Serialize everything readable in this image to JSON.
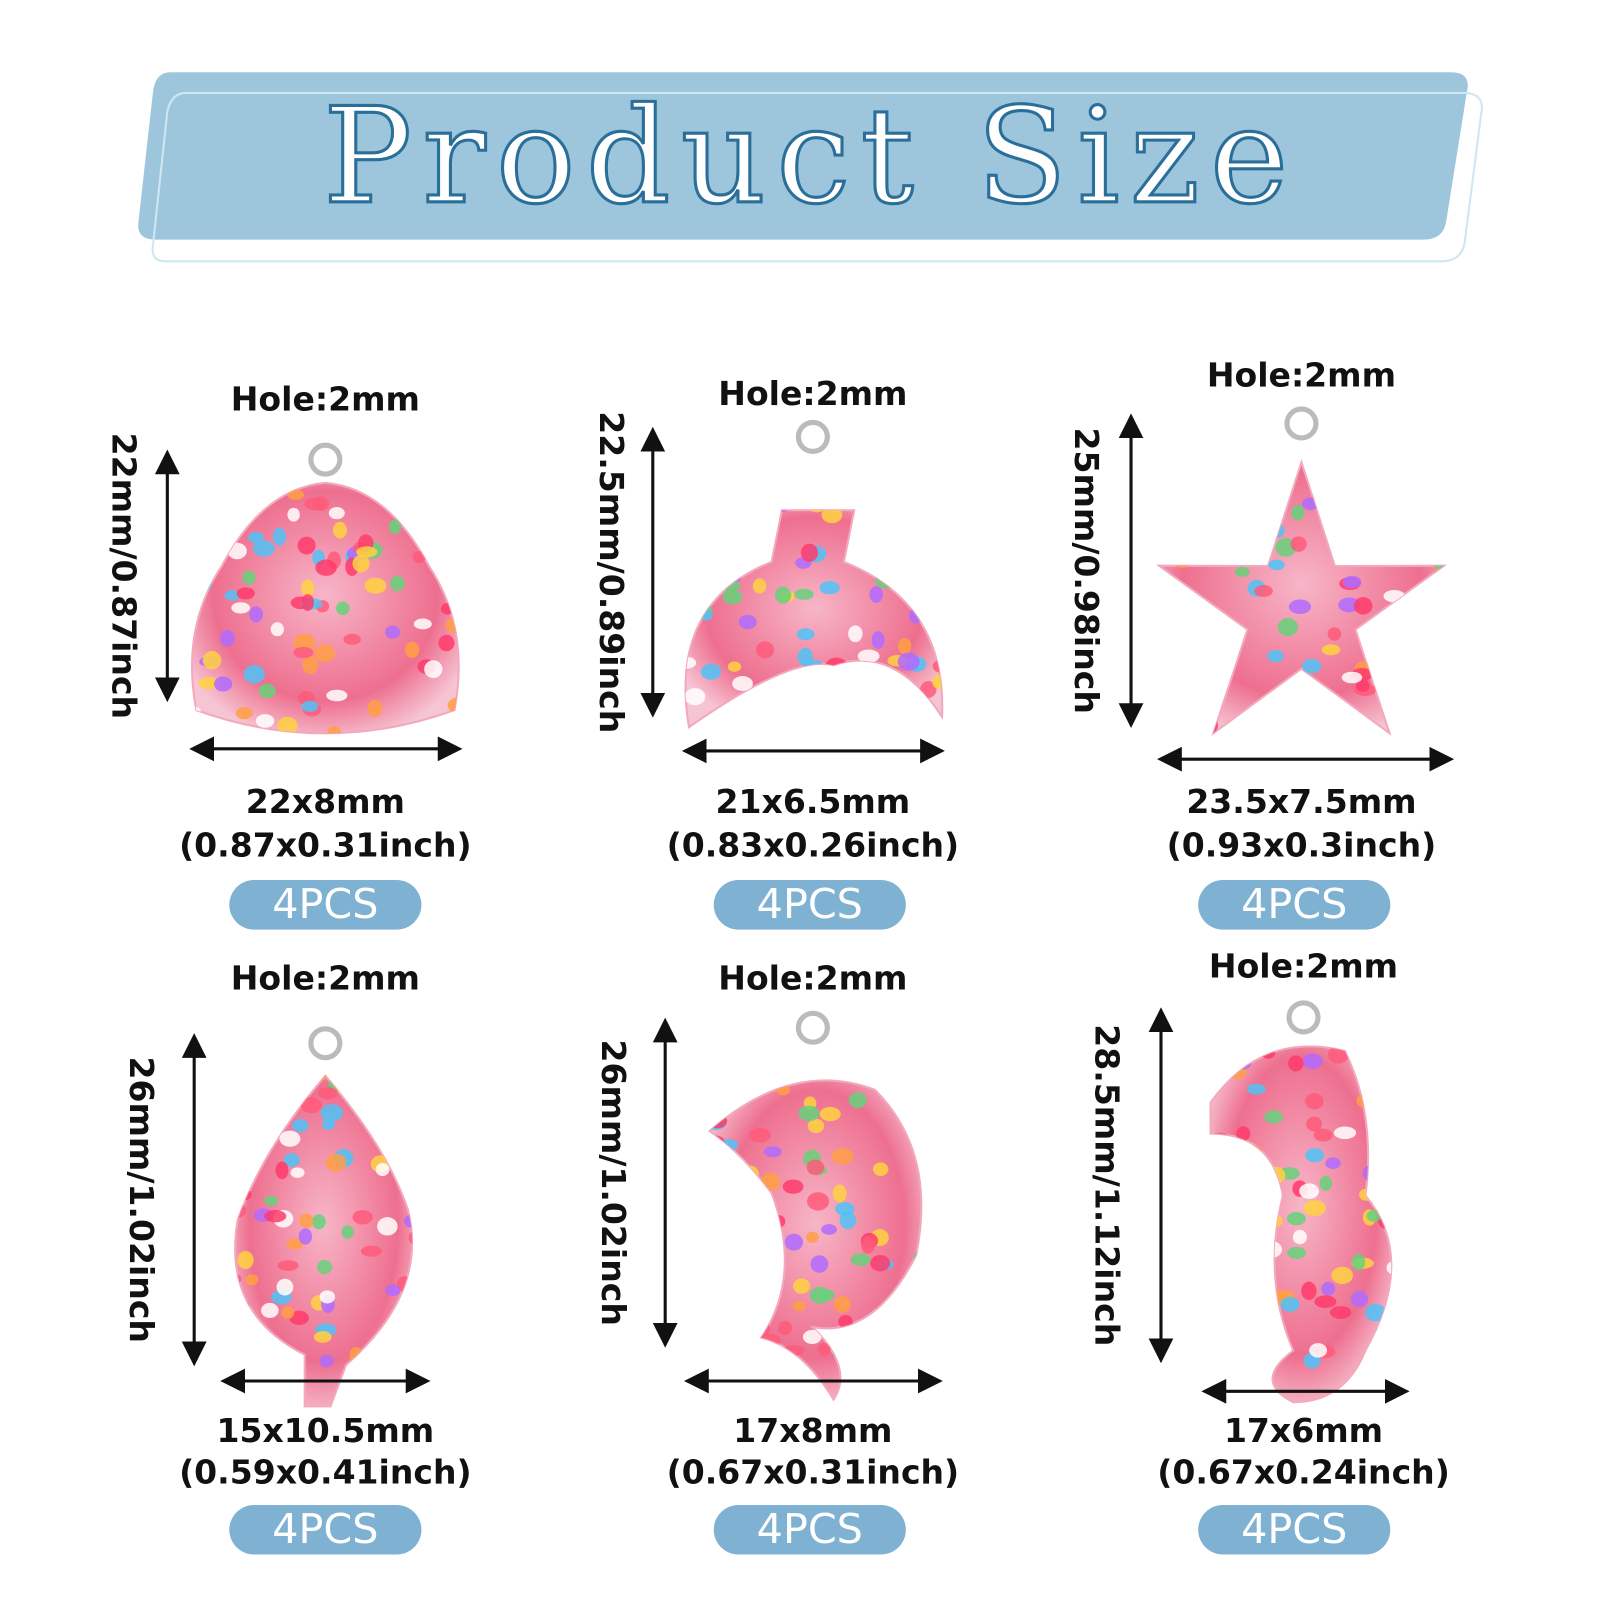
{
  "header": {
    "title": "Product Size"
  },
  "items": [
    {
      "hole": "Hole:2mm",
      "height": "22mm/0.87inch",
      "size": "22x8mm",
      "size_inch": "(0.87x0.31inch)",
      "quantity": "4PCS"
    },
    {
      "hole": "Hole:2mm",
      "height": "22.5mm/0.89inch",
      "size": "21x6.5mm",
      "size_inch": "(0.83x0.26inch)",
      "quantity": "4PCS"
    },
    {
      "hole": "Hole:2mm",
      "height": "25mm/0.98inch",
      "size": "23.5x7.5mm",
      "size_inch": "(0.93x0.3inch)",
      "quantity": "4PCS"
    },
    {
      "hole": "Hole:2mm",
      "height": "26mm/1.02inch",
      "size": "15x10.5mm",
      "size_inch": "(0.59x0.41inch)",
      "quantity": "4PCS"
    },
    {
      "hole": "Hole:2mm",
      "height": "26mm/1.02inch",
      "size": "17x8mm",
      "size_inch": "(0.67x0.31inch)",
      "quantity": "4PCS"
    },
    {
      "hole": "Hole:2mm",
      "height": "28.5mm/1.12inch",
      "size": "17x6mm",
      "size_inch": "(0.67x0.24inch)",
      "quantity": "4PCS"
    }
  ]
}
